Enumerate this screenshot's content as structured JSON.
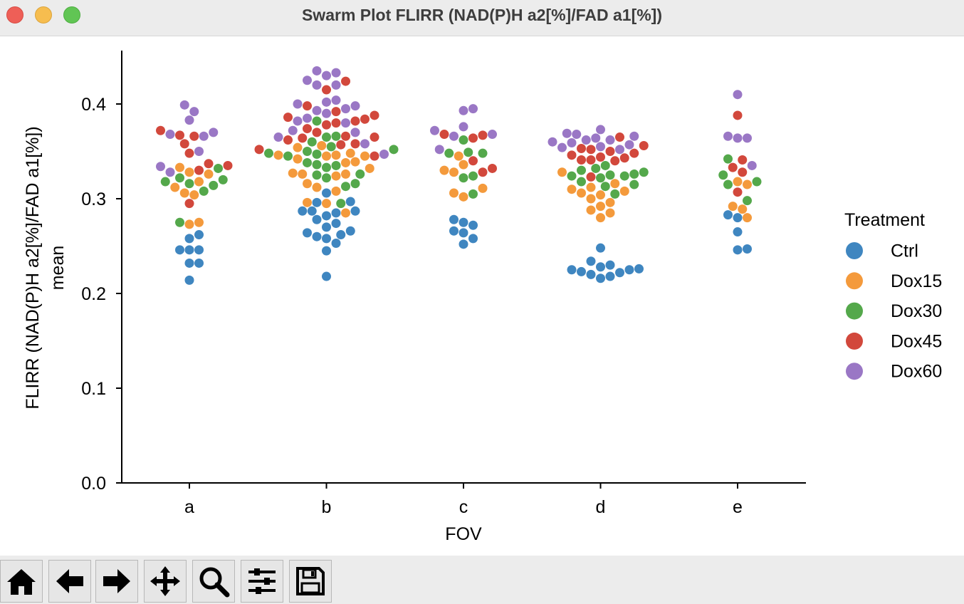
{
  "window": {
    "title": "Swarm Plot FLIRR (NAD(P)H a2[%]/FAD a1[%])"
  },
  "toolbar": {
    "buttons": [
      "home-icon",
      "back-icon",
      "forward-icon",
      "pan-icon",
      "zoom-icon",
      "configure-icon",
      "save-icon"
    ]
  },
  "chart_data": {
    "type": "scatter",
    "subtype": "swarm",
    "title": "",
    "xlabel": "FOV",
    "ylabel": "FLIRR (NAD(P)H a2[%]/FAD a1[%])",
    "ylabel2": "mean",
    "categories": [
      "a",
      "b",
      "c",
      "d",
      "e"
    ],
    "ylim": [
      0.0,
      0.455
    ],
    "yticks": [
      "0.0",
      "0.1",
      "0.2",
      "0.3",
      "0.4"
    ],
    "legend": {
      "title": "Treatment",
      "position": "right"
    },
    "series": [
      {
        "name": "Ctrl",
        "color": "#3f86c0",
        "values": [
          [
            0.214,
            0.232,
            0.232,
            0.246,
            0.246,
            0.246,
            0.258,
            0.262
          ],
          [
            0.218,
            0.245,
            0.253,
            0.258,
            0.26,
            0.262,
            0.264,
            0.266,
            0.27,
            0.274,
            0.278,
            0.282,
            0.285,
            0.287,
            0.287,
            0.287,
            0.296,
            0.297,
            0.306
          ],
          [
            0.252,
            0.258,
            0.264,
            0.266,
            0.272,
            0.275,
            0.278
          ],
          [
            0.216,
            0.218,
            0.22,
            0.222,
            0.223,
            0.225,
            0.225,
            0.226,
            0.228,
            0.23,
            0.234,
            0.248
          ],
          [
            0.246,
            0.247,
            0.265,
            0.28,
            0.283
          ]
        ]
      },
      {
        "name": "Dox15",
        "color": "#f49a3c",
        "values": [
          [
            0.273,
            0.275,
            0.304,
            0.306,
            0.312,
            0.318,
            0.326,
            0.328,
            0.333
          ],
          [
            0.285,
            0.295,
            0.296,
            0.308,
            0.312,
            0.316,
            0.324,
            0.326,
            0.326,
            0.327,
            0.332,
            0.338,
            0.339,
            0.342,
            0.345,
            0.345,
            0.346,
            0.346,
            0.348,
            0.354,
            0.356
          ],
          [
            0.302,
            0.306,
            0.311,
            0.328,
            0.33,
            0.336,
            0.345
          ],
          [
            0.28,
            0.285,
            0.288,
            0.292,
            0.296,
            0.3,
            0.304,
            0.306,
            0.308,
            0.31,
            0.312,
            0.316,
            0.328
          ],
          [
            0.28,
            0.289,
            0.292,
            0.315,
            0.318
          ]
        ]
      },
      {
        "name": "Dox30",
        "color": "#54a84b",
        "values": [
          [
            0.275,
            0.308,
            0.314,
            0.316,
            0.318,
            0.32,
            0.322,
            0.332
          ],
          [
            0.295,
            0.313,
            0.316,
            0.322,
            0.325,
            0.326,
            0.333,
            0.335,
            0.336,
            0.338,
            0.345,
            0.347,
            0.348,
            0.35,
            0.352,
            0.355,
            0.36,
            0.365,
            0.366,
            0.382
          ],
          [
            0.305,
            0.322,
            0.324,
            0.348,
            0.348,
            0.349,
            0.362
          ],
          [
            0.305,
            0.313,
            0.315,
            0.318,
            0.322,
            0.324,
            0.324,
            0.325,
            0.326,
            0.328,
            0.33,
            0.332,
            0.335
          ],
          [
            0.298,
            0.315,
            0.318,
            0.325,
            0.342
          ]
        ]
      },
      {
        "name": "Dox45",
        "color": "#d2483c",
        "values": [
          [
            0.295,
            0.33,
            0.335,
            0.337,
            0.348,
            0.358,
            0.366,
            0.367,
            0.372
          ],
          [
            0.345,
            0.352,
            0.357,
            0.358,
            0.362,
            0.364,
            0.365,
            0.366,
            0.37,
            0.374,
            0.378,
            0.38,
            0.382,
            0.384,
            0.386,
            0.388,
            0.392,
            0.398,
            0.415,
            0.424
          ],
          [
            0.328,
            0.332,
            0.34,
            0.364,
            0.367,
            0.368
          ],
          [
            0.323,
            0.34,
            0.341,
            0.341,
            0.343,
            0.344,
            0.346,
            0.348,
            0.35,
            0.352,
            0.353,
            0.356,
            0.365
          ],
          [
            0.307,
            0.328,
            0.333,
            0.341,
            0.388
          ]
        ]
      },
      {
        "name": "Dox60",
        "color": "#9a77c5",
        "values": [
          [
            0.328,
            0.334,
            0.35,
            0.366,
            0.368,
            0.37,
            0.383,
            0.392,
            0.399
          ],
          [
            0.347,
            0.358,
            0.365,
            0.37,
            0.372,
            0.38,
            0.382,
            0.385,
            0.39,
            0.393,
            0.395,
            0.398,
            0.4,
            0.402,
            0.404,
            0.42,
            0.42,
            0.425,
            0.43,
            0.433,
            0.435
          ],
          [
            0.352,
            0.366,
            0.368,
            0.372,
            0.376,
            0.393,
            0.395
          ],
          [
            0.352,
            0.354,
            0.355,
            0.357,
            0.359,
            0.36,
            0.362,
            0.362,
            0.364,
            0.366,
            0.368,
            0.369,
            0.373
          ],
          [
            0.335,
            0.364,
            0.364,
            0.366,
            0.41
          ]
        ]
      }
    ]
  }
}
